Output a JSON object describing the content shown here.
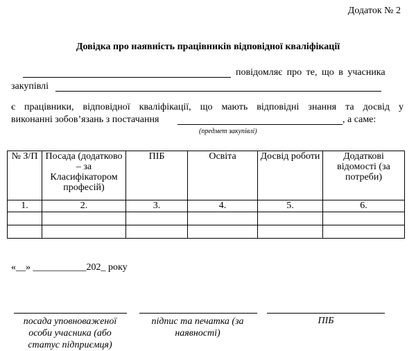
{
  "annex": "Додаток № 2",
  "title": "Довідка про наявність працівників відповідної кваліфікації",
  "para1_a": "повідомляє про те, що в учасника",
  "para1_b": "закупівлі",
  "para2_line1": "є працівники, відповідної кваліфікації, що мають відповідні знання та досвід у",
  "para2_line2_a": "виконанні зобов’язань з постачання",
  "para2_line2_b": ", а саме:",
  "subject_hint": "(предмет закупівлі)",
  "table": {
    "headers": [
      "№ З/П",
      "Посада (додатково – за Класифікатором професій)",
      "ПІБ",
      "Освіта",
      "Досвід роботи",
      "Додаткові відомості (за потреби)"
    ],
    "numbers": [
      "1.",
      "2.",
      "3.",
      "4.",
      "5.",
      "6."
    ],
    "empty_rows": 2
  },
  "date_line": "«__» ___________202_ року",
  "signatures": [
    "посада уповноваженої особи учасника (або статус підприємця)",
    "підпис та печатка (за наявності)",
    "ПІБ"
  ]
}
